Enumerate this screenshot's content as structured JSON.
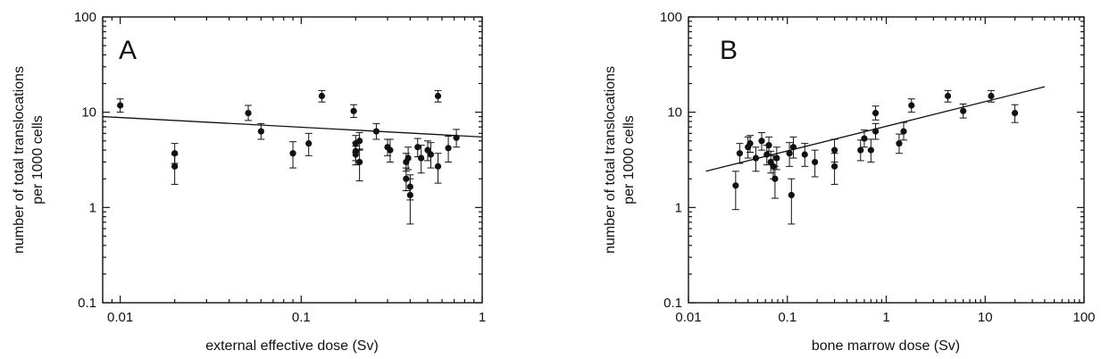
{
  "chart_data": [
    {
      "type": "scatter",
      "panel_label": "A",
      "xlabel": "external effective dose (Sv)",
      "ylabel_line1": "number of total translocations",
      "ylabel_line2": "per 1000 cells",
      "xscale": "log",
      "yscale": "log",
      "xlim": [
        0.008,
        1
      ],
      "ylim": [
        0.1,
        100
      ],
      "x_ticks": [
        {
          "v": 0.01,
          "label": "0.01"
        },
        {
          "v": 0.1,
          "label": "0.1"
        },
        {
          "v": 1,
          "label": "1"
        }
      ],
      "y_ticks": [
        {
          "v": 0.1,
          "label": "0.1"
        },
        {
          "v": 1,
          "label": "1"
        },
        {
          "v": 10,
          "label": "10"
        },
        {
          "v": 100,
          "label": "100"
        }
      ],
      "grid": false,
      "fit_line": {
        "x": [
          0.008,
          1
        ],
        "y": [
          9.0,
          5.5
        ]
      },
      "points": [
        {
          "x": 0.01,
          "y": 11.8,
          "lo": 10.0,
          "hi": 13.8
        },
        {
          "x": 0.02,
          "y": 3.7,
          "lo": 2.9,
          "hi": 4.7
        },
        {
          "x": 0.02,
          "y": 2.7,
          "lo": 1.75,
          "hi": 3.6
        },
        {
          "x": 0.051,
          "y": 9.8,
          "lo": 8.2,
          "hi": 11.8
        },
        {
          "x": 0.06,
          "y": 6.3,
          "lo": 5.2,
          "hi": 7.6
        },
        {
          "x": 0.09,
          "y": 3.7,
          "lo": 2.6,
          "hi": 4.9
        },
        {
          "x": 0.11,
          "y": 4.7,
          "lo": 3.5,
          "hi": 6.0
        },
        {
          "x": 0.13,
          "y": 14.8,
          "lo": 12.8,
          "hi": 16.9
        },
        {
          "x": 0.195,
          "y": 10.3,
          "lo": 8.8,
          "hi": 12.0
        },
        {
          "x": 0.2,
          "y": 4.7,
          "lo": 3.8,
          "hi": 5.7
        },
        {
          "x": 0.2,
          "y": 3.9,
          "lo": 3.1,
          "hi": 4.8
        },
        {
          "x": 0.2,
          "y": 3.6,
          "lo": 2.8,
          "hi": 4.4
        },
        {
          "x": 0.21,
          "y": 5.0,
          "lo": 4.0,
          "hi": 6.1
        },
        {
          "x": 0.21,
          "y": 3.0,
          "lo": 1.9,
          "hi": 4.1
        },
        {
          "x": 0.26,
          "y": 6.3,
          "lo": 5.2,
          "hi": 7.6
        },
        {
          "x": 0.3,
          "y": 4.3,
          "lo": 3.5,
          "hi": 5.2
        },
        {
          "x": 0.31,
          "y": 4.0,
          "lo": 3.0,
          "hi": 5.2
        },
        {
          "x": 0.38,
          "y": 3.0,
          "lo": 2.4,
          "hi": 3.7
        },
        {
          "x": 0.38,
          "y": 2.0,
          "lo": 1.5,
          "hi": 2.6
        },
        {
          "x": 0.39,
          "y": 3.3,
          "lo": 2.5,
          "hi": 4.3
        },
        {
          "x": 0.4,
          "y": 1.65,
          "lo": 1.2,
          "hi": 2.2
        },
        {
          "x": 0.4,
          "y": 1.35,
          "lo": 0.67,
          "hi": 2.0
        },
        {
          "x": 0.44,
          "y": 4.3,
          "lo": 3.4,
          "hi": 5.3
        },
        {
          "x": 0.46,
          "y": 3.3,
          "lo": 2.3,
          "hi": 4.5
        },
        {
          "x": 0.5,
          "y": 4.0,
          "lo": 3.1,
          "hi": 5.0
        },
        {
          "x": 0.52,
          "y": 3.6,
          "lo": 2.6,
          "hi": 4.8
        },
        {
          "x": 0.57,
          "y": 14.8,
          "lo": 12.8,
          "hi": 16.9
        },
        {
          "x": 0.57,
          "y": 2.7,
          "lo": 1.8,
          "hi": 3.7
        },
        {
          "x": 0.65,
          "y": 4.2,
          "lo": 3.0,
          "hi": 5.6
        },
        {
          "x": 0.72,
          "y": 5.4,
          "lo": 4.3,
          "hi": 6.6
        }
      ]
    },
    {
      "type": "scatter",
      "panel_label": "B",
      "xlabel": "bone marrow dose (Sv)",
      "ylabel_line1": "number of total translocations",
      "ylabel_line2": "per 1000 cells",
      "xscale": "log",
      "yscale": "log",
      "xlim": [
        0.01,
        100
      ],
      "ylim": [
        0.1,
        100
      ],
      "x_ticks": [
        {
          "v": 0.01,
          "label": "0.01"
        },
        {
          "v": 0.1,
          "label": "0.1"
        },
        {
          "v": 1,
          "label": "1"
        },
        {
          "v": 10,
          "label": "10"
        },
        {
          "v": 100,
          "label": "100"
        }
      ],
      "y_ticks": [
        {
          "v": 0.1,
          "label": "0.1"
        },
        {
          "v": 1,
          "label": "1"
        },
        {
          "v": 10,
          "label": "10"
        },
        {
          "v": 100,
          "label": "100"
        }
      ],
      "grid": false,
      "fit_line": {
        "x": [
          0.015,
          40
        ],
        "y": [
          2.4,
          18.5
        ]
      },
      "points": [
        {
          "x": 0.03,
          "y": 1.7,
          "lo": 0.95,
          "hi": 2.4
        },
        {
          "x": 0.033,
          "y": 3.7,
          "lo": 2.9,
          "hi": 4.7
        },
        {
          "x": 0.04,
          "y": 4.3,
          "lo": 3.3,
          "hi": 5.5
        },
        {
          "x": 0.042,
          "y": 4.7,
          "lo": 3.8,
          "hi": 5.7
        },
        {
          "x": 0.048,
          "y": 3.3,
          "lo": 2.4,
          "hi": 4.3
        },
        {
          "x": 0.055,
          "y": 5.0,
          "lo": 4.0,
          "hi": 6.1
        },
        {
          "x": 0.062,
          "y": 3.6,
          "lo": 2.8,
          "hi": 4.5
        },
        {
          "x": 0.065,
          "y": 4.5,
          "lo": 3.6,
          "hi": 5.5
        },
        {
          "x": 0.068,
          "y": 3.0,
          "lo": 2.3,
          "hi": 3.9
        },
        {
          "x": 0.072,
          "y": 2.7,
          "lo": 2.0,
          "hi": 3.5
        },
        {
          "x": 0.075,
          "y": 2.0,
          "lo": 1.25,
          "hi": 2.7
        },
        {
          "x": 0.078,
          "y": 3.3,
          "lo": 2.5,
          "hi": 4.3
        },
        {
          "x": 0.105,
          "y": 3.7,
          "lo": 2.7,
          "hi": 4.8
        },
        {
          "x": 0.11,
          "y": 1.35,
          "lo": 0.67,
          "hi": 2.0
        },
        {
          "x": 0.115,
          "y": 4.3,
          "lo": 3.3,
          "hi": 5.5
        },
        {
          "x": 0.15,
          "y": 3.6,
          "lo": 2.7,
          "hi": 4.7
        },
        {
          "x": 0.19,
          "y": 3.0,
          "lo": 2.1,
          "hi": 4.0
        },
        {
          "x": 0.3,
          "y": 4.0,
          "lo": 3.0,
          "hi": 5.2
        },
        {
          "x": 0.3,
          "y": 2.7,
          "lo": 1.75,
          "hi": 3.7
        },
        {
          "x": 0.55,
          "y": 4.0,
          "lo": 3.1,
          "hi": 5.1
        },
        {
          "x": 0.6,
          "y": 5.3,
          "lo": 4.3,
          "hi": 6.5
        },
        {
          "x": 0.7,
          "y": 4.0,
          "lo": 3.0,
          "hi": 5.2
        },
        {
          "x": 0.78,
          "y": 6.3,
          "lo": 5.2,
          "hi": 7.6
        },
        {
          "x": 0.78,
          "y": 9.8,
          "lo": 8.3,
          "hi": 11.6
        },
        {
          "x": 1.35,
          "y": 4.7,
          "lo": 3.7,
          "hi": 5.9
        },
        {
          "x": 1.5,
          "y": 6.3,
          "lo": 5.1,
          "hi": 7.8
        },
        {
          "x": 1.8,
          "y": 11.8,
          "lo": 10.0,
          "hi": 13.8
        },
        {
          "x": 4.2,
          "y": 14.8,
          "lo": 12.8,
          "hi": 16.9
        },
        {
          "x": 6.0,
          "y": 10.3,
          "lo": 8.7,
          "hi": 12.2
        },
        {
          "x": 11.5,
          "y": 14.8,
          "lo": 12.8,
          "hi": 16.9
        },
        {
          "x": 20.0,
          "y": 9.8,
          "lo": 7.8,
          "hi": 12.0
        }
      ]
    }
  ]
}
